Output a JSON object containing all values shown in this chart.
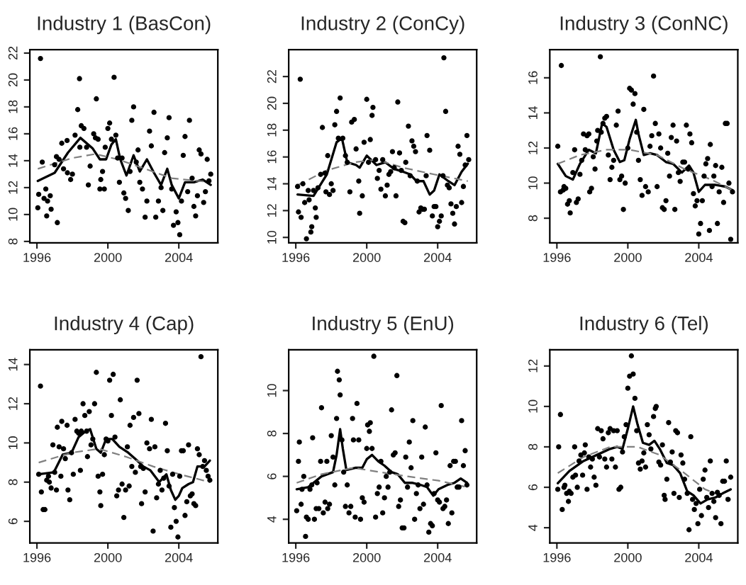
{
  "chart_data": [
    {
      "type": "scatter",
      "title": "Industry 1 (BasCon)",
      "xlim": [
        1995.6,
        2006.2
      ],
      "xticks": [
        1996,
        2000,
        2004
      ],
      "ylim": [
        7.9,
        22.25
      ],
      "yticks": [
        8,
        10,
        12,
        14,
        16,
        18,
        20,
        22
      ],
      "grid": false,
      "legend": false,
      "series": [
        {
          "type": "scatter",
          "color": "#000000",
          "marker": "circle",
          "x": [
            1996.2,
            1996.05,
            1996.1,
            1996.3,
            1996.4,
            1996.5,
            1996.55,
            1996.6,
            1996.75,
            1996.8,
            1997.0,
            1997.1,
            1997.15,
            1997.25,
            1997.4,
            1997.5,
            1997.7,
            1997.72,
            1997.9,
            1998.0,
            1998.15,
            1998.3,
            1998.4,
            1998.42,
            1998.5,
            1998.65,
            1998.8,
            1998.9,
            1999.0,
            1999.2,
            1999.3,
            1999.35,
            1999.45,
            1999.55,
            1999.6,
            1999.7,
            1999.8,
            1999.85,
            2000.0,
            2000.1,
            2000.2,
            2000.35,
            2000.45,
            2000.55,
            2000.65,
            2000.8,
            2000.9,
            2001.0,
            2001.15,
            2001.25,
            2001.35,
            2001.45,
            2001.6,
            2001.7,
            2001.8,
            2001.95,
            2002.1,
            2002.2,
            2002.35,
            2002.45,
            2002.6,
            2002.7,
            2002.85,
            2003.0,
            2003.1,
            2003.2,
            2003.35,
            2003.45,
            2003.6,
            2003.7,
            2003.85,
            2003.95,
            2004.05,
            2004.15,
            2004.25,
            2004.35,
            2004.5,
            2004.6,
            2004.75,
            2004.85,
            2004.95,
            2005.05,
            2005.15,
            2005.25,
            2005.4,
            2005.5,
            2005.6,
            2005.7,
            2005.8
          ],
          "values": [
            21.6,
            10.5,
            11.5,
            13.9,
            11.2,
            11.9,
            9.9,
            11.0,
            11.4,
            10.4,
            13.7,
            14.3,
            9.4,
            14.1,
            15.3,
            13.4,
            15.5,
            13.1,
            12.6,
            13.0,
            15.9,
            17.8,
            20.1,
            15.0,
            16.6,
            16.4,
            15.0,
            12.2,
            13.6,
            16.0,
            15.7,
            18.6,
            15.6,
            11.9,
            12.6,
            13.2,
            11.9,
            15.0,
            16.4,
            16.8,
            15.6,
            20.2,
            15.9,
            14.2,
            12.4,
            14.2,
            11.6,
            11.2,
            10.3,
            13.2,
            17.0,
            18.0,
            13.9,
            14.8,
            12.4,
            11.9,
            9.8,
            11.0,
            16.2,
            15.1,
            17.6,
            9.8,
            11.0,
            12.0,
            10.3,
            14.6,
            15.7,
            17.2,
            11.9,
            9.2,
            10.2,
            9.4,
            8.5,
            11.0,
            14.4,
            15.8,
            11.7,
            17.0,
            12.7,
            10.6,
            9.9,
            11.4,
            14.8,
            14.5,
            10.9,
            11.7,
            14.1,
            12.5,
            13.0
          ]
        },
        {
          "type": "line",
          "color": "#000000",
          "line_style": "solid",
          "x": [
            1996.05,
            1997.0,
            1997.75,
            1998.45,
            1999.15,
            1999.55,
            1999.9,
            2000.2,
            2000.45,
            2000.7,
            2001.05,
            2001.45,
            2001.8,
            2002.2,
            2002.6,
            2003.0,
            2003.35,
            2003.6,
            2004.0,
            2004.35,
            2004.85,
            2005.35,
            2005.8
          ],
          "values": [
            12.5,
            13.1,
            14.6,
            15.7,
            14.9,
            14.1,
            14.1,
            15.2,
            15.6,
            14.1,
            12.9,
            14.4,
            13.2,
            14.1,
            13.1,
            12.2,
            13.4,
            12.2,
            11.2,
            12.4,
            12.4,
            12.6,
            12.2
          ]
        },
        {
          "type": "line",
          "color": "#808080",
          "line_style": "dashed",
          "x": [
            1996.05,
            1998.0,
            1999.3,
            2000.55,
            2002.1,
            2003.6,
            2005.8
          ],
          "values": [
            13.4,
            14.2,
            14.5,
            14.1,
            13.4,
            12.7,
            12.4
          ]
        }
      ]
    },
    {
      "type": "scatter",
      "title": "Industry 2 (ConCy)",
      "xlim": [
        1995.6,
        2006.2
      ],
      "xticks": [
        1996,
        2000,
        2004
      ],
      "ylim": [
        9.6,
        24.0
      ],
      "yticks": [
        10,
        12,
        14,
        16,
        18,
        20,
        22
      ],
      "grid": false,
      "legend": false,
      "series": [
        {
          "type": "scatter",
          "color": "#000000",
          "marker": "circle",
          "x": [
            1996.25,
            1996.1,
            1996.15,
            1996.3,
            1996.4,
            1996.5,
            1996.6,
            1996.7,
            1996.75,
            1996.85,
            1996.9,
            1997.0,
            1997.1,
            1997.15,
            1997.25,
            1997.4,
            1997.5,
            1997.65,
            1997.7,
            1997.8,
            1997.9,
            1998.0,
            1998.1,
            1998.2,
            1998.3,
            1998.4,
            1998.5,
            1998.65,
            1998.8,
            1998.9,
            1999.05,
            1999.15,
            1999.3,
            1999.4,
            1999.55,
            1999.6,
            1999.75,
            1999.85,
            2000.0,
            2000.1,
            2000.2,
            2000.3,
            2000.35,
            2000.5,
            2000.6,
            2000.7,
            2000.8,
            2000.9,
            2001.05,
            2001.15,
            2001.25,
            2001.35,
            2001.45,
            2001.55,
            2001.65,
            2001.75,
            2001.85,
            2001.95,
            2002.05,
            2002.15,
            2002.2,
            2002.35,
            2002.45,
            2002.55,
            2002.65,
            2002.75,
            2002.85,
            2002.95,
            2003.05,
            2003.15,
            2003.25,
            2003.35,
            2003.4,
            2003.55,
            2003.7,
            2003.8,
            2003.9,
            2004.0,
            2004.1,
            2004.2,
            2004.3,
            2004.35,
            2004.45,
            2004.55,
            2004.65,
            2004.75,
            2004.85,
            2004.95,
            2005.05,
            2005.15,
            2005.25,
            2005.35,
            2005.45,
            2005.55,
            2005.65,
            2005.75
          ],
          "values": [
            21.8,
            13.8,
            11.9,
            11.5,
            14.0,
            12.6,
            9.9,
            13.5,
            12.8,
            10.4,
            10.8,
            13.5,
            12.2,
            11.5,
            13.7,
            14.7,
            18.2,
            14.8,
            13.4,
            16.1,
            13.2,
            14.0,
            13.5,
            18.4,
            19.4,
            17.4,
            20.4,
            17.4,
            16.1,
            15.6,
            13.4,
            18.6,
            18.8,
            16.6,
            14.2,
            11.8,
            13.1,
            17.1,
            20.3,
            15.6,
            17.3,
            19.1,
            19.7,
            15.8,
            14.4,
            15.0,
            13.6,
            15.8,
            13.1,
            13.9,
            14.7,
            14.9,
            16.4,
            15.2,
            13.1,
            20.1,
            16.3,
            15.0,
            11.2,
            11.1,
            15.6,
            18.3,
            14.6,
            17.2,
            16.8,
            16.4,
            14.2,
            11.9,
            12.2,
            12.1,
            12.1,
            14.6,
            17.6,
            16.5,
            11.6,
            12.3,
            12.3,
            10.8,
            11.2,
            11.6,
            14.6,
            23.4,
            19.4,
            13.9,
            13.7,
            12.5,
            11.8,
            11.0,
            12.3,
            16.8,
            16.2,
            12.6,
            13.8,
            15.4,
            17.6,
            15.8
          ]
        },
        {
          "type": "line",
          "color": "#000000",
          "line_style": "solid",
          "x": [
            1996.1,
            1997.0,
            1997.75,
            1998.3,
            1998.6,
            1998.9,
            1999.4,
            1999.6,
            2000.0,
            2000.55,
            2001.05,
            2001.55,
            2002.05,
            2002.45,
            2002.8,
            2003.2,
            2003.55,
            2003.8,
            2004.1,
            2004.6,
            2004.95,
            2005.35,
            2005.7
          ],
          "values": [
            13.2,
            13.1,
            14.7,
            17.1,
            17.4,
            15.6,
            15.4,
            15.2,
            16.1,
            15.4,
            15.6,
            15.1,
            14.9,
            14.7,
            14.2,
            14.2,
            13.2,
            13.5,
            14.7,
            14.2,
            13.9,
            14.9,
            15.5
          ]
        },
        {
          "type": "line",
          "color": "#808080",
          "line_style": "dashed",
          "x": [
            1996.1,
            1997.75,
            1999.3,
            2000.55,
            2002.05,
            2003.8,
            2005.7
          ],
          "values": [
            13.9,
            15.0,
            15.6,
            15.8,
            15.2,
            14.7,
            14.2
          ]
        }
      ]
    },
    {
      "type": "scatter",
      "title": "Industry 3 (ConNC)",
      "xlim": [
        1995.6,
        2006.2
      ],
      "xticks": [
        1996,
        2000,
        2004
      ],
      "ylim": [
        6.6,
        17.6
      ],
      "yticks": [
        8,
        10,
        12,
        14,
        16
      ],
      "grid": false,
      "legend": false,
      "series": [
        {
          "type": "scatter",
          "color": "#000000",
          "marker": "circle",
          "x": [
            1996.05,
            1996.25,
            1996.2,
            1996.35,
            1996.4,
            1996.5,
            1996.6,
            1996.7,
            1996.75,
            1996.9,
            1997.0,
            1997.1,
            1997.2,
            1997.3,
            1997.4,
            1997.5,
            1997.6,
            1997.7,
            1997.8,
            1997.85,
            1997.95,
            1998.05,
            1998.15,
            1998.25,
            1998.3,
            1998.45,
            1998.5,
            1998.6,
            1998.7,
            1998.8,
            1998.9,
            1999.0,
            1999.1,
            1999.2,
            1999.35,
            1999.45,
            1999.55,
            1999.65,
            1999.75,
            1999.85,
            2000.0,
            2000.1,
            2000.2,
            2000.3,
            2000.4,
            2000.5,
            2000.6,
            2000.7,
            2000.8,
            2000.9,
            2001.0,
            2001.15,
            2001.25,
            2001.35,
            2001.45,
            2001.55,
            2001.65,
            2001.75,
            2001.85,
            2001.95,
            2002.05,
            2002.15,
            2002.25,
            2002.35,
            2002.45,
            2002.55,
            2002.65,
            2002.75,
            2002.85,
            2002.95,
            2003.1,
            2003.2,
            2003.3,
            2003.4,
            2003.5,
            2003.6,
            2003.7,
            2003.8,
            2003.9,
            2004.0,
            2004.1,
            2004.2,
            2004.3,
            2004.4,
            2004.5,
            2004.6,
            2004.65,
            2004.75,
            2004.85,
            2004.95,
            2005.05,
            2005.15,
            2005.3,
            2005.4,
            2005.5,
            2005.6,
            2005.7,
            2005.8,
            2005.9
          ],
          "values": [
            12.1,
            16.7,
            9.5,
            9.6,
            9.8,
            9.7,
            8.8,
            9.0,
            8.3,
            10.6,
            11.9,
            8.9,
            9.1,
            10.5,
            11.3,
            12.8,
            11.9,
            12.7,
            12.8,
            9.5,
            9.7,
            11.5,
            10.8,
            12.4,
            13.0,
            17.2,
            12.9,
            13.4,
            13.7,
            13.8,
            11.6,
            10.2,
            10.9,
            11.3,
            13.3,
            14.1,
            10.2,
            10.4,
            8.5,
            10.0,
            12.0,
            15.4,
            15.3,
            14.5,
            15.1,
            12.9,
            11.3,
            10.2,
            9.3,
            14.2,
            9.8,
            9.5,
            12.1,
            12.7,
            16.1,
            13.4,
            9.8,
            12.8,
            12.0,
            8.6,
            8.5,
            9.0,
            11.7,
            10.4,
            12.6,
            13.3,
            8.5,
            12.4,
            10.6,
            10.1,
            11.2,
            11.2,
            13.3,
            10.8,
            12.8,
            12.3,
            9.4,
            8.7,
            9.0,
            7.1,
            7.7,
            9.0,
            10.4,
            11.1,
            11.4,
            7.3,
            12.2,
            9.8,
            10.4,
            11.0,
            7.7,
            9.5,
            10.9,
            8.9,
            13.4,
            13.4,
            10.0,
            6.8,
            9.5
          ]
        },
        {
          "type": "line",
          "color": "#000000",
          "line_style": "solid",
          "x": [
            1996.05,
            1996.5,
            1996.9,
            1997.3,
            1997.8,
            1998.2,
            1998.55,
            1998.8,
            1999.2,
            1999.55,
            1999.8,
            2000.1,
            2000.45,
            2000.6,
            2000.9,
            2001.25,
            2001.65,
            2002.15,
            2002.55,
            2003.05,
            2003.45,
            2003.7,
            2004.0,
            2004.35,
            2004.95,
            2005.5,
            2005.9
          ],
          "values": [
            11.1,
            10.4,
            10.2,
            11.1,
            11.9,
            11.7,
            13.4,
            13.2,
            11.9,
            11.2,
            11.3,
            12.5,
            13.6,
            12.8,
            11.6,
            11.7,
            11.6,
            11.2,
            11.1,
            10.6,
            11.0,
            10.6,
            9.5,
            9.9,
            9.9,
            9.8,
            9.6
          ]
        },
        {
          "type": "line",
          "color": "#808080",
          "line_style": "dashed",
          "x": [
            1996.05,
            1997.3,
            1998.8,
            2000.1,
            2001.65,
            2003.2,
            2004.7,
            2005.9
          ],
          "values": [
            11.1,
            11.6,
            11.9,
            11.9,
            11.6,
            10.8,
            10.2,
            9.6
          ]
        }
      ]
    },
    {
      "type": "scatter",
      "title": "Industry 4 (Cap)",
      "xlim": [
        1995.6,
        2006.2
      ],
      "xticks": [
        1996,
        2000,
        2004
      ],
      "ylim": [
        4.9,
        14.75
      ],
      "yticks": [
        6,
        8,
        10,
        12,
        14
      ],
      "grid": false,
      "legend": false,
      "series": [
        {
          "type": "scatter",
          "color": "#000000",
          "marker": "circle",
          "x": [
            1996.1,
            1996.2,
            1996.25,
            1996.35,
            1996.45,
            1996.55,
            1996.65,
            1996.7,
            1996.8,
            1996.9,
            1997.0,
            1997.1,
            1997.15,
            1997.25,
            1997.35,
            1997.4,
            1997.5,
            1997.6,
            1997.7,
            1997.75,
            1997.85,
            1997.95,
            1998.05,
            1998.15,
            1998.25,
            1998.35,
            1998.45,
            1998.5,
            1998.6,
            1998.7,
            1998.8,
            1998.85,
            1998.95,
            1999.05,
            1999.15,
            1999.25,
            1999.35,
            1999.45,
            1999.55,
            1999.6,
            1999.7,
            1999.8,
            1999.9,
            2000.0,
            2000.1,
            2000.2,
            2000.3,
            2000.4,
            2000.5,
            2000.6,
            2000.7,
            2000.8,
            2000.9,
            2001.0,
            2001.1,
            2001.2,
            2001.25,
            2001.35,
            2001.45,
            2001.55,
            2001.65,
            2001.75,
            2001.85,
            2001.9,
            2002.0,
            2002.1,
            2002.2,
            2002.35,
            2002.45,
            2002.55,
            2002.65,
            2002.75,
            2002.85,
            2002.95,
            2003.05,
            2003.15,
            2003.25,
            2003.35,
            2003.45,
            2003.55,
            2003.65,
            2003.75,
            2003.85,
            2003.95,
            2004.05,
            2004.15,
            2004.25,
            2004.35,
            2004.45,
            2004.55,
            2004.65,
            2004.75,
            2004.85,
            2004.95,
            2005.05,
            2005.15,
            2005.25,
            2005.35,
            2005.45,
            2005.55,
            2005.65,
            2005.75
          ],
          "values": [
            8.4,
            12.9,
            7.5,
            6.6,
            6.6,
            8.1,
            8.3,
            8.0,
            7.7,
            9.9,
            8.5,
            7.6,
            10.8,
            9.8,
            8.3,
            11.1,
            9.7,
            9.2,
            10.9,
            7.6,
            7.1,
            9.5,
            8.4,
            11.2,
            10.6,
            10.5,
            8.6,
            10.6,
            12.0,
            11.4,
            10.6,
            9.3,
            11.6,
            9.9,
            10.2,
            12.0,
            13.6,
            8.3,
            7.5,
            6.8,
            8.4,
            9.4,
            10.2,
            10.1,
            13.2,
            11.4,
            13.5,
            10.3,
            7.3,
            7.6,
            12.2,
            7.9,
            6.2,
            7.6,
            9.8,
            7.8,
            10.9,
            8.8,
            11.3,
            8.5,
            13.2,
            11.5,
            8.8,
            6.9,
            8.7,
            7.5,
            10.0,
            9.7,
            11.2,
            5.5,
            9.8,
            7.2,
            7.9,
            8.6,
            7.6,
            8.2,
            11.0,
            9.6,
            7.8,
            5.7,
            8.4,
            6.7,
            6.0,
            5.2,
            8.3,
            9.6,
            9.6,
            6.3,
            7.0,
            9.9,
            7.3,
            7.4,
            6.9,
            6.8,
            9.7,
            9.4,
            14.4,
            8.8,
            9.1,
            8.6,
            8.3,
            8.1
          ]
        },
        {
          "type": "line",
          "color": "#000000",
          "line_style": "solid",
          "x": [
            1996.1,
            1996.95,
            1997.45,
            1997.95,
            1998.35,
            1998.75,
            1999.0,
            1999.35,
            1999.6,
            1999.9,
            2000.25,
            2000.65,
            2001.15,
            2001.65,
            2002.0,
            2002.4,
            2002.9,
            2003.3,
            2003.55,
            2003.8,
            2004.0,
            2004.2,
            2004.55,
            2004.8,
            2005.05,
            2005.45,
            2005.75
          ],
          "values": [
            8.4,
            8.5,
            9.4,
            9.5,
            10.3,
            10.6,
            10.7,
            9.7,
            9.5,
            10.2,
            10.2,
            9.8,
            9.5,
            9.1,
            8.8,
            8.6,
            8.0,
            8.4,
            7.6,
            7.1,
            7.3,
            7.7,
            7.9,
            8.0,
            8.8,
            8.8,
            9.1
          ]
        },
        {
          "type": "line",
          "color": "#808080",
          "line_style": "dashed",
          "x": [
            1996.1,
            1997.95,
            1999.5,
            2001.0,
            2002.55,
            2004.05,
            2005.75
          ],
          "values": [
            9.0,
            9.5,
            9.7,
            9.3,
            8.8,
            8.4,
            8.0
          ]
        }
      ]
    },
    {
      "type": "scatter",
      "title": "Industry 5 (EnU)",
      "xlim": [
        1995.6,
        2006.2
      ],
      "xticks": [
        1996,
        2000,
        2004
      ],
      "ylim": [
        2.9,
        11.9
      ],
      "yticks": [
        4,
        6,
        8,
        10
      ],
      "grid": false,
      "legend": false,
      "series": [
        {
          "type": "scatter",
          "color": "#000000",
          "marker": "circle",
          "x": [
            1996.05,
            1996.15,
            1996.2,
            1996.3,
            1996.35,
            1996.45,
            1996.55,
            1996.6,
            1996.7,
            1996.8,
            1996.9,
            1996.95,
            1997.05,
            1997.15,
            1997.2,
            1997.3,
            1997.4,
            1997.45,
            1997.55,
            1997.65,
            1997.75,
            1997.8,
            1997.9,
            1998.0,
            1998.1,
            1998.2,
            1998.3,
            1998.35,
            1998.45,
            1998.5,
            1998.6,
            1998.7,
            1998.8,
            1998.9,
            1999.0,
            1999.1,
            1999.2,
            1999.25,
            1999.35,
            1999.45,
            1999.55,
            1999.65,
            1999.75,
            1999.85,
            2000.0,
            2000.05,
            2000.15,
            2000.2,
            2000.3,
            2000.4,
            2000.5,
            2000.6,
            2000.7,
            2000.8,
            2000.9,
            2001.0,
            2001.1,
            2001.2,
            2001.3,
            2001.4,
            2001.5,
            2001.6,
            2001.7,
            2001.8,
            2001.9,
            2002.0,
            2002.1,
            2002.2,
            2002.3,
            2002.4,
            2002.5,
            2002.6,
            2002.7,
            2002.8,
            2002.9,
            2003.0,
            2003.1,
            2003.2,
            2003.3,
            2003.4,
            2003.5,
            2003.6,
            2003.7,
            2003.8,
            2003.9,
            2004.0,
            2004.1,
            2004.2,
            2004.3,
            2004.4,
            2004.5,
            2004.6,
            2004.7,
            2004.8,
            2004.9,
            2005.0,
            2005.1,
            2005.2,
            2005.35,
            2005.45,
            2005.55,
            2005.65
          ],
          "values": [
            4.4,
            6.7,
            7.6,
            4.7,
            5.4,
            6.0,
            3.2,
            4.1,
            4.0,
            5.4,
            5.6,
            7.8,
            4.0,
            4.5,
            5.7,
            4.5,
            6.7,
            9.2,
            4.3,
            4.8,
            6.7,
            4.5,
            4.7,
            7.9,
            6.9,
            5.6,
            8.7,
            10.9,
            10.5,
            9.8,
            7.7,
            6.2,
            4.6,
            5.6,
            4.3,
            4.6,
            8.7,
            7.7,
            4.1,
            9.4,
            7.7,
            4.0,
            5.0,
            4.8,
            7.3,
            8.4,
            8.1,
            8.5,
            7.3,
            11.6,
            4.1,
            5.2,
            5.5,
            6.7,
            4.3,
            5.0,
            6.0,
            5.5,
            6.2,
            9.1,
            7.0,
            7.1,
            10.7,
            4.6,
            4.9,
            3.6,
            3.6,
            6.9,
            5.5,
            7.6,
            6.4,
            8.6,
            4.0,
            5.2,
            5.6,
            4.5,
            6.9,
            4.7,
            8.3,
            5.6,
            3.4,
            3.8,
            3.7,
            5.2,
            7.1,
            4.9,
            4.8,
            9.3,
            4.5,
            4.6,
            4.9,
            3.8,
            6.5,
            4.3,
            6.7,
            6.7,
            5.5,
            5.5,
            8.6,
            6.5,
            7.2,
            5.6
          ]
        },
        {
          "type": "line",
          "color": "#000000",
          "line_style": "solid",
          "x": [
            1996.05,
            1996.7,
            1997.45,
            1998.1,
            1998.3,
            1998.5,
            1998.65,
            1998.85,
            1999.35,
            1999.75,
            2000.0,
            2000.3,
            2000.65,
            2001.0,
            2001.4,
            2001.75,
            2002.15,
            2002.55,
            2003.05,
            2003.4,
            2003.75,
            2004.05,
            2004.55,
            2004.95,
            2005.3,
            2005.65
          ],
          "values": [
            5.4,
            5.5,
            6.0,
            6.2,
            7.0,
            8.2,
            7.3,
            6.3,
            6.4,
            6.4,
            6.8,
            7.0,
            6.7,
            6.5,
            6.2,
            6.1,
            5.7,
            5.7,
            5.6,
            5.5,
            5.1,
            5.4,
            5.6,
            5.7,
            5.9,
            5.7
          ]
        },
        {
          "type": "line",
          "color": "#808080",
          "line_style": "dashed",
          "x": [
            1996.05,
            1997.45,
            1999.25,
            2000.75,
            2002.3,
            2004.05,
            2005.65
          ],
          "values": [
            5.7,
            6.1,
            6.4,
            6.2,
            6.0,
            5.8,
            5.5
          ]
        }
      ]
    },
    {
      "type": "scatter",
      "title": "Industry 6 (Tel)",
      "xlim": [
        1995.6,
        2006.2
      ],
      "xticks": [
        1996,
        2000,
        2004
      ],
      "ylim": [
        3.25,
        12.8
      ],
      "yticks": [
        4,
        6,
        8,
        10,
        12
      ],
      "grid": false,
      "legend": false,
      "series": [
        {
          "type": "scatter",
          "color": "#000000",
          "marker": "circle",
          "x": [
            1996.05,
            1996.1,
            1996.2,
            1996.3,
            1996.4,
            1996.45,
            1996.55,
            1996.65,
            1996.7,
            1996.8,
            1996.9,
            1997.0,
            1997.05,
            1997.15,
            1997.25,
            1997.35,
            1997.45,
            1997.55,
            1997.6,
            1997.7,
            1997.8,
            1997.9,
            1998.0,
            1998.1,
            1998.2,
            1998.3,
            1998.4,
            1998.5,
            1998.6,
            1998.7,
            1998.8,
            1998.9,
            1999.0,
            1999.1,
            1999.2,
            1999.3,
            1999.4,
            1999.5,
            1999.6,
            1999.7,
            1999.8,
            1999.9,
            2000.0,
            2000.1,
            2000.2,
            2000.3,
            2000.4,
            2000.5,
            2000.6,
            2000.7,
            2000.8,
            2000.9,
            2001.0,
            2001.1,
            2001.2,
            2001.3,
            2001.45,
            2001.55,
            2001.6,
            2001.75,
            2001.85,
            2001.95,
            2002.05,
            2002.1,
            2002.2,
            2002.3,
            2002.4,
            2002.5,
            2002.6,
            2002.7,
            2002.8,
            2002.9,
            2003.0,
            2003.1,
            2003.2,
            2003.35,
            2003.45,
            2003.55,
            2003.65,
            2003.75,
            2003.85,
            2003.95,
            2004.05,
            2004.15,
            2004.25,
            2004.35,
            2004.45,
            2004.55,
            2004.65,
            2004.75,
            2004.85,
            2004.95,
            2005.05,
            2005.15,
            2005.25,
            2005.35,
            2005.45,
            2005.55,
            2005.65,
            2005.8
          ],
          "values": [
            5.9,
            8.0,
            9.6,
            4.9,
            6.0,
            6.1,
            5.7,
            5.3,
            5.8,
            5.7,
            6.5,
            8.0,
            6.6,
            6.0,
            7.3,
            7.6,
            6.6,
            7.7,
            8.1,
            5.9,
            7.5,
            7.0,
            7.4,
            6.5,
            6.1,
            8.9,
            7.5,
            8.8,
            8.4,
            7.4,
            7.0,
            8.7,
            8.9,
            7.4,
            8.8,
            7.0,
            8.8,
            5.9,
            6.0,
            7.75,
            8.5,
            9.1,
            10.9,
            11.5,
            12.5,
            11.6,
            10.4,
            8.8,
            7.2,
            6.9,
            7.3,
            7.7,
            7.0,
            9.1,
            8.6,
            7.9,
            9.5,
            9.9,
            10.0,
            7.25,
            7.1,
            8.1,
            5.6,
            5.4,
            6.4,
            9.2,
            7.25,
            7.75,
            5.7,
            8.8,
            8.7,
            5.5,
            7.6,
            7.2,
            6.4,
            5.7,
            3.9,
            8.5,
            5.4,
            4.9,
            5.2,
            4.2,
            5.9,
            4.6,
            6.4,
            6.85,
            5.5,
            5.0,
            7.3,
            5.7,
            5.3,
            4.5,
            5.75,
            5.6,
            4.2,
            6.3,
            6.3,
            7.3,
            5.4,
            6.5
          ]
        },
        {
          "type": "line",
          "color": "#000000",
          "line_style": "solid",
          "x": [
            1996.05,
            1996.7,
            1997.5,
            1998.25,
            1999.0,
            1999.4,
            1999.7,
            2000.0,
            2000.3,
            2000.55,
            2000.85,
            2001.2,
            2001.5,
            2001.8,
            2002.2,
            2002.55,
            2002.95,
            2003.35,
            2003.7,
            2004.1,
            2004.5,
            2004.95,
            2005.35,
            2005.8
          ],
          "values": [
            6.2,
            6.8,
            7.3,
            7.6,
            7.9,
            8.0,
            7.9,
            8.9,
            10.0,
            9.1,
            8.2,
            8.1,
            8.3,
            7.9,
            7.2,
            7.1,
            6.7,
            5.8,
            5.6,
            5.2,
            5.4,
            5.5,
            5.7,
            5.9
          ]
        },
        {
          "type": "line",
          "color": "#808080",
          "line_style": "dashed",
          "x": [
            1996.05,
            1997.5,
            1999.0,
            2000.55,
            2001.8,
            2003.05,
            2004.35,
            2005.8
          ],
          "values": [
            6.7,
            7.5,
            8.0,
            8.0,
            7.6,
            6.8,
            5.9,
            5.4
          ]
        }
      ]
    }
  ]
}
